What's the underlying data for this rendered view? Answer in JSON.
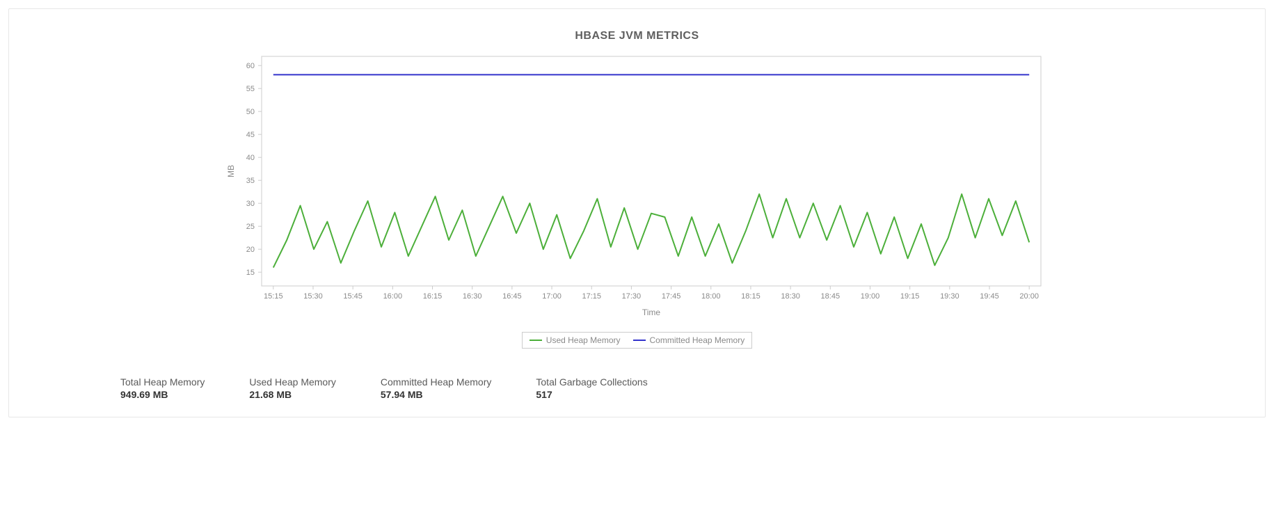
{
  "chart": {
    "type": "line",
    "title": "HBASE JVM METRICS",
    "xlabel": "Time",
    "ylabel": "MB",
    "background_color": "#ffffff",
    "plot_border_color": "#cccccc",
    "tick_color": "#8a8a8a",
    "x_ticks": [
      "15:15",
      "15:30",
      "15:45",
      "16:00",
      "16:15",
      "16:30",
      "16:45",
      "17:00",
      "17:15",
      "17:30",
      "17:45",
      "18:00",
      "18:15",
      "18:30",
      "18:45",
      "19:00",
      "19:15",
      "19:30",
      "19:45",
      "20:00"
    ],
    "y_ticks": [
      15,
      20,
      25,
      30,
      35,
      40,
      45,
      50,
      55,
      60
    ],
    "ylim": [
      12,
      62
    ],
    "series": [
      {
        "name": "Used Heap Memory",
        "color": "#4caf3a",
        "line_width": 2,
        "values": [
          16,
          22,
          29.5,
          20,
          26,
          17,
          24,
          30.5,
          20.5,
          28,
          18.5,
          25,
          31.5,
          22,
          28.5,
          18.5,
          25,
          31.5,
          23.5,
          30,
          20,
          27.5,
          18,
          24,
          31,
          20.5,
          29,
          20,
          27.8,
          27,
          18.5,
          27,
          18.5,
          25.5,
          17,
          24,
          32,
          22.5,
          31,
          22.5,
          30,
          22,
          29.5,
          20.5,
          28,
          19,
          27,
          18,
          25.5,
          16.5,
          22.5,
          32,
          22.5,
          31,
          23,
          30.5,
          21.5
        ]
      },
      {
        "name": "Committed Heap Memory",
        "color": "#3333cc",
        "line_width": 2,
        "values": [
          58,
          58,
          58,
          58,
          58,
          58,
          58,
          58,
          58,
          58,
          58,
          58,
          58,
          58,
          58,
          58,
          58,
          58,
          58,
          58,
          58,
          58,
          58,
          58,
          58,
          58,
          58,
          58,
          58,
          58,
          58,
          58,
          58,
          58,
          58,
          58,
          58,
          58,
          58,
          58,
          58,
          58,
          58,
          58,
          58,
          58,
          58,
          58,
          58,
          58,
          58,
          58,
          58,
          58,
          58,
          58,
          58
        ]
      }
    ]
  },
  "stats": [
    {
      "label": "Total Heap Memory",
      "value": "949.69 MB"
    },
    {
      "label": "Used Heap Memory",
      "value": "21.68 MB"
    },
    {
      "label": "Committed Heap Memory",
      "value": "57.94 MB"
    },
    {
      "label": "Total Garbage Collections",
      "value": "517"
    }
  ]
}
